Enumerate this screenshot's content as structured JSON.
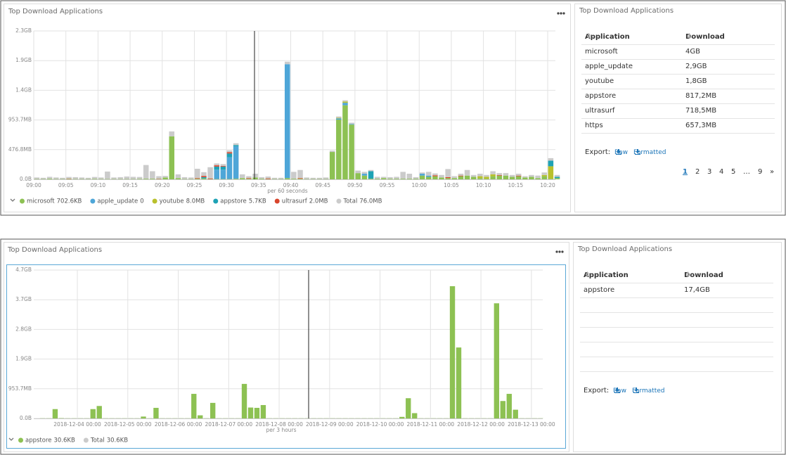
{
  "chart_data": [
    {
      "type": "bar",
      "stacked": true,
      "title": "Top Download Applications",
      "x_label": "per 60 seconds",
      "categories": [
        "09:00",
        null,
        null,
        null,
        null,
        "09:05",
        null,
        null,
        null,
        null,
        "09:10",
        null,
        null,
        null,
        null,
        "09:15",
        null,
        null,
        null,
        null,
        "09:20",
        null,
        null,
        null,
        null,
        "09:25",
        null,
        null,
        null,
        null,
        "09:30",
        null,
        null,
        null,
        null,
        "09:35",
        null,
        null,
        null,
        null,
        "09:40",
        null,
        null,
        null,
        null,
        "09:45",
        null,
        null,
        null,
        null,
        "09:50",
        null,
        null,
        null,
        null,
        "09:55",
        null,
        null,
        null,
        null,
        "10:00",
        null,
        null,
        null,
        null,
        "10:05",
        null,
        null,
        null,
        null,
        "10:10",
        null,
        null,
        null,
        null,
        "10:15",
        null,
        null,
        null,
        null,
        "10:20",
        null
      ],
      "ylim": [
        0,
        2384.2
      ],
      "yticks": [
        {
          "value": 0,
          "label": "0.0B"
        },
        {
          "value": 476.8,
          "label": "476.8MB"
        },
        {
          "value": 953.7,
          "label": "953.7MB"
        },
        {
          "value": 1430.5,
          "label": "1.4GB"
        },
        {
          "value": 1907.3,
          "label": "1.9GB"
        },
        {
          "value": 2384.2,
          "label": "2.3GB"
        }
      ],
      "grid": true,
      "series": [
        {
          "name": "microsoft",
          "legend_value": "702.6KB",
          "color": "#8dc153",
          "values": [
            5,
            5,
            10,
            5,
            5,
            8,
            5,
            5,
            5,
            8,
            5,
            5,
            5,
            5,
            5,
            5,
            8,
            10,
            10,
            5,
            30,
            690,
            20,
            5,
            5,
            10,
            15,
            5,
            5,
            5,
            5,
            10,
            20,
            10,
            30,
            10,
            5,
            5,
            5,
            20,
            10,
            10,
            5,
            5,
            5,
            5,
            440,
            960,
            1190,
            880,
            100,
            60,
            10,
            10,
            20,
            10,
            10,
            10,
            10,
            10,
            60,
            40,
            50,
            30,
            20,
            20,
            50,
            60,
            40,
            20,
            10,
            50,
            60,
            60,
            40,
            50,
            30,
            40,
            20,
            50,
            10,
            20
          ]
        },
        {
          "name": "apple_update",
          "legend_value": "0",
          "color": "#4ea6d8",
          "values": [
            0,
            0,
            0,
            0,
            0,
            0,
            0,
            0,
            0,
            0,
            0,
            0,
            0,
            0,
            0,
            0,
            0,
            0,
            0,
            0,
            0,
            0,
            0,
            0,
            0,
            0,
            0,
            0,
            150,
            150,
            350,
            520,
            0,
            0,
            0,
            0,
            0,
            0,
            0,
            1830,
            0,
            0,
            0,
            0,
            0,
            0,
            0,
            20,
            40,
            10,
            0,
            30,
            0,
            0,
            0,
            0,
            0,
            0,
            0,
            0,
            30,
            20,
            0,
            0,
            0,
            0,
            0,
            0,
            0,
            0,
            0,
            0,
            0,
            0,
            0,
            0,
            0,
            0,
            0,
            0,
            0,
            0
          ]
        },
        {
          "name": "youtube",
          "legend_value": "8.0MB",
          "color": "#b9c02c",
          "values": [
            0,
            0,
            0,
            0,
            0,
            0,
            0,
            0,
            0,
            0,
            0,
            0,
            0,
            0,
            0,
            0,
            0,
            0,
            0,
            0,
            0,
            0,
            0,
            0,
            0,
            0,
            0,
            0,
            0,
            0,
            0,
            0,
            0,
            0,
            0,
            0,
            0,
            0,
            0,
            0,
            0,
            0,
            0,
            0,
            0,
            0,
            0,
            10,
            20,
            0,
            0,
            0,
            0,
            0,
            0,
            0,
            0,
            0,
            0,
            0,
            0,
            0,
            0,
            0,
            0,
            0,
            0,
            0,
            0,
            30,
            30,
            30,
            0,
            0,
            0,
            0,
            0,
            0,
            0,
            20,
            200,
            0
          ]
        },
        {
          "name": "appstore",
          "legend_value": "5.7KB",
          "color": "#1ea2b5",
          "values": [
            0,
            0,
            0,
            0,
            0,
            0,
            0,
            0,
            0,
            0,
            0,
            0,
            0,
            0,
            0,
            0,
            0,
            0,
            0,
            0,
            0,
            0,
            0,
            0,
            0,
            0,
            20,
            0,
            50,
            50,
            60,
            20,
            0,
            0,
            0,
            0,
            0,
            0,
            0,
            0,
            0,
            0,
            0,
            0,
            0,
            0,
            0,
            0,
            0,
            0,
            0,
            0,
            120,
            0,
            0,
            0,
            0,
            0,
            0,
            0,
            0,
            0,
            0,
            0,
            0,
            0,
            0,
            0,
            0,
            0,
            0,
            0,
            0,
            0,
            0,
            0,
            0,
            0,
            0,
            0,
            90,
            20
          ]
        },
        {
          "name": "ultrasurf",
          "legend_value": "2.0MB",
          "color": "#d8452c",
          "values": [
            0,
            0,
            0,
            0,
            0,
            5,
            0,
            0,
            0,
            0,
            0,
            0,
            0,
            0,
            0,
            0,
            0,
            0,
            0,
            5,
            0,
            0,
            0,
            0,
            0,
            10,
            20,
            10,
            20,
            10,
            20,
            0,
            0,
            10,
            0,
            0,
            10,
            0,
            0,
            0,
            0,
            10,
            0,
            0,
            0,
            0,
            0,
            0,
            0,
            0,
            0,
            0,
            0,
            0,
            0,
            0,
            0,
            0,
            0,
            0,
            0,
            0,
            15,
            0,
            15,
            0,
            10,
            0,
            0,
            0,
            0,
            0,
            10,
            0,
            0,
            10,
            0,
            0,
            0,
            0,
            0,
            0
          ]
        },
        {
          "name": "Total",
          "legend_value": "76.0MB",
          "color": "#cbcbcb",
          "values": [
            25,
            20,
            30,
            25,
            20,
            25,
            30,
            25,
            20,
            30,
            25,
            120,
            25,
            30,
            40,
            35,
            30,
            220,
            120,
            40,
            25,
            80,
            60,
            30,
            25,
            150,
            60,
            180,
            30,
            30,
            30,
            30,
            60,
            30,
            60,
            25,
            30,
            20,
            20,
            40,
            110,
            130,
            25,
            20,
            20,
            25,
            20,
            20,
            20,
            20,
            40,
            30,
            20,
            30,
            20,
            25,
            30,
            110,
            80,
            25,
            20,
            60,
            30,
            40,
            130,
            30,
            30,
            90,
            30,
            40,
            30,
            50,
            30,
            40,
            30,
            30,
            20,
            30,
            40,
            40,
            40,
            30
          ]
        }
      ]
    },
    {
      "type": "bar",
      "stacked": true,
      "title": "Top Download Applications",
      "x_label": "per 3 hours",
      "categories": [
        null,
        null,
        null,
        null,
        null,
        null,
        "2018-12-04 00:00",
        null,
        null,
        null,
        null,
        null,
        null,
        null,
        "2018-12-05 00:00",
        null,
        null,
        null,
        null,
        null,
        null,
        null,
        "2018-12-06 00:00",
        null,
        null,
        null,
        null,
        null,
        null,
        null,
        "2018-12-07 00:00",
        null,
        null,
        null,
        null,
        null,
        null,
        null,
        "2018-12-08 00:00",
        null,
        null,
        null,
        null,
        null,
        null,
        null,
        "2018-12-09 00:00",
        null,
        null,
        null,
        null,
        null,
        null,
        null,
        "2018-12-10 00:00",
        null,
        null,
        null,
        null,
        null,
        null,
        null,
        "2018-12-11 00:00",
        null,
        null,
        null,
        null,
        null,
        null,
        null,
        "2018-12-12 00:00",
        null,
        null,
        null,
        null,
        null,
        null,
        null,
        "2018-12-13 00:00",
        null
      ],
      "ylim": [
        0,
        4768.4
      ],
      "yticks": [
        {
          "value": 0,
          "label": "0.0B"
        },
        {
          "value": 953.7,
          "label": "953.7MB"
        },
        {
          "value": 1907.3,
          "label": "1.9GB"
        },
        {
          "value": 2861,
          "label": "2.8GB"
        },
        {
          "value": 3814.7,
          "label": "3.7GB"
        },
        {
          "value": 4768.4,
          "label": "4.7GB"
        }
      ],
      "grid": true,
      "series": [
        {
          "name": "appstore",
          "legend_value": "30.6KB",
          "color": "#8dc153",
          "values": [
            5,
            5,
            300,
            10,
            5,
            5,
            5,
            5,
            300,
            400,
            5,
            5,
            5,
            5,
            5,
            5,
            60,
            5,
            340,
            5,
            5,
            5,
            5,
            5,
            790,
            100,
            5,
            500,
            5,
            5,
            5,
            5,
            1110,
            350,
            340,
            430,
            5,
            5,
            5,
            5,
            5,
            5,
            5,
            5,
            5,
            5,
            5,
            5,
            5,
            5,
            5,
            5,
            5,
            5,
            5,
            5,
            5,
            50,
            650,
            170,
            5,
            5,
            5,
            5,
            5,
            4250,
            2280,
            5,
            5,
            5,
            5,
            5,
            3700,
            560,
            790,
            280,
            5,
            5,
            5,
            5
          ]
        },
        {
          "name": "Total",
          "legend_value": "30.6KB",
          "color": "#cbcbcb",
          "values": [
            0,
            0,
            0,
            0,
            0,
            0,
            0,
            0,
            0,
            0,
            0,
            0,
            0,
            0,
            0,
            0,
            0,
            0,
            0,
            0,
            0,
            0,
            0,
            0,
            0,
            0,
            0,
            0,
            0,
            0,
            0,
            0,
            0,
            0,
            0,
            0,
            0,
            0,
            0,
            0,
            0,
            0,
            0,
            0,
            0,
            0,
            0,
            0,
            0,
            0,
            0,
            0,
            0,
            0,
            0,
            0,
            0,
            0,
            0,
            0,
            0,
            0,
            0,
            0,
            0,
            0,
            0,
            0,
            0,
            0,
            0,
            0,
            0,
            0,
            0,
            0,
            0,
            0,
            0,
            0
          ]
        }
      ]
    }
  ],
  "tables": [
    {
      "title": "Top Download Applications",
      "columns": [
        "Application",
        "Download"
      ],
      "rows": [
        [
          "microsoft",
          "4GB"
        ],
        [
          "apple_update",
          "2,9GB"
        ],
        [
          "youtube",
          "1,8GB"
        ],
        [
          "appstore",
          "817,2MB"
        ],
        [
          "ultrasurf",
          "718,5MB"
        ],
        [
          "https",
          "657,3MB"
        ]
      ],
      "export_label": "Export:",
      "export_links": [
        "Raw",
        "Formatted"
      ],
      "pagination": [
        "1",
        "2",
        "3",
        "4",
        "5",
        "…",
        "9",
        "»"
      ]
    },
    {
      "title": "Top Download Applications",
      "columns": [
        "Application",
        "Download"
      ],
      "rows": [
        [
          "appstore",
          "17,4GB"
        ]
      ],
      "export_label": "Export:",
      "export_links": [
        "Raw",
        "Formatted"
      ]
    }
  ]
}
